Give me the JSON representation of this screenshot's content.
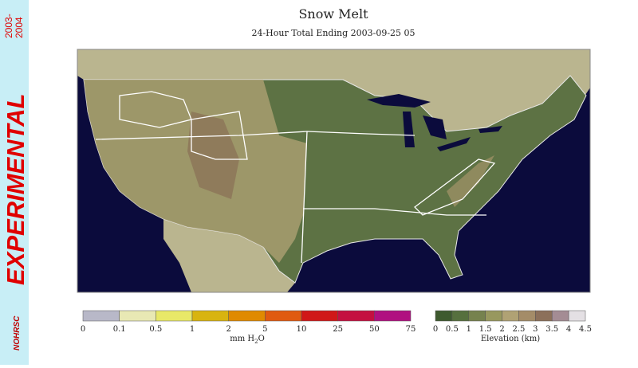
{
  "banner": {
    "label": "EXPERIMENTAL",
    "years": [
      "2003-",
      "2004"
    ],
    "logo": "NOHRSC"
  },
  "header": {
    "title": "Snow Melt",
    "subtitle": "24-Hour Total Ending 2003-09-25 05"
  },
  "melt_legend": {
    "labels": [
      "0",
      "0.1",
      "0.5",
      "1",
      "2",
      "5",
      "10",
      "25",
      "50",
      "75"
    ],
    "unit": {
      "main": "mm H",
      "sub": "2",
      "tail": "O"
    }
  },
  "elevation_legend": {
    "labels": [
      "0",
      "0.5",
      "1",
      "1.5",
      "2",
      "2.5",
      "3",
      "3.5",
      "4",
      "4.5"
    ],
    "title": "Elevation (km)"
  }
}
